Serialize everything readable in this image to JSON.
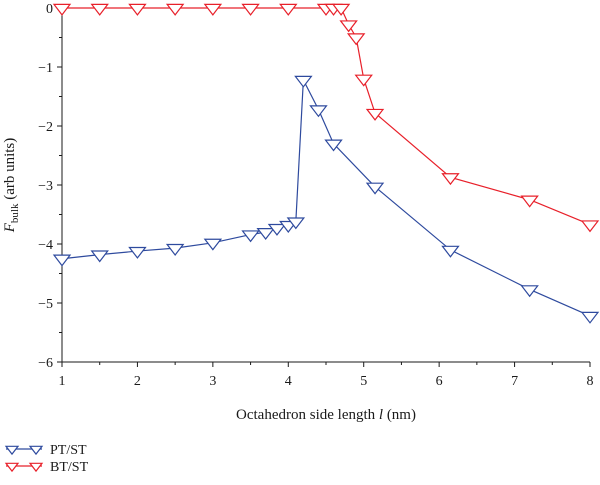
{
  "chart_data": {
    "type": "line",
    "xlabel_prefix": "Octahedron side length ",
    "xlabel_var": "l",
    "xlabel_suffix": " (nm)",
    "ylabel_var": "F",
    "ylabel_sub": "bulk",
    "ylabel_suffix": " (arb units)",
    "xlim": [
      1,
      8
    ],
    "ylim": [
      -6,
      0
    ],
    "xticks": [
      1,
      2,
      3,
      4,
      5,
      6,
      7,
      8
    ],
    "yticks": [
      0,
      -1,
      -2,
      -3,
      -4,
      -5,
      -6
    ],
    "ytick_labels": [
      "0",
      "−1",
      "−2",
      "−3",
      "−4",
      "−5",
      "−6"
    ],
    "grid": false,
    "legend_position": "bottom-left, below plot",
    "marker": "open-down-triangle",
    "series": [
      {
        "name": "PT/ST",
        "color": "#2e4a9e",
        "x": [
          1.0,
          1.5,
          2.0,
          2.5,
          3.0,
          3.5,
          3.7,
          3.85,
          4.0,
          4.1,
          4.2,
          4.4,
          4.6,
          5.15,
          6.15,
          7.2,
          8.0
        ],
        "y": [
          -4.25,
          -4.18,
          -4.12,
          -4.07,
          -3.98,
          -3.84,
          -3.8,
          -3.73,
          -3.68,
          -3.62,
          -1.22,
          -1.72,
          -2.3,
          -3.03,
          -4.1,
          -4.77,
          -5.22
        ]
      },
      {
        "name": "BT/ST",
        "color": "#e8202a",
        "x": [
          1.0,
          1.5,
          2.0,
          2.5,
          3.0,
          3.5,
          4.0,
          4.5,
          4.6,
          4.7,
          4.8,
          4.9,
          5.0,
          5.15,
          6.15,
          7.2,
          8.0
        ],
        "y": [
          0.0,
          0.0,
          0.0,
          0.0,
          0.0,
          0.0,
          0.0,
          0.0,
          0.0,
          0.0,
          -0.28,
          -0.5,
          -1.2,
          -1.78,
          -2.87,
          -3.25,
          -3.67
        ]
      }
    ]
  }
}
